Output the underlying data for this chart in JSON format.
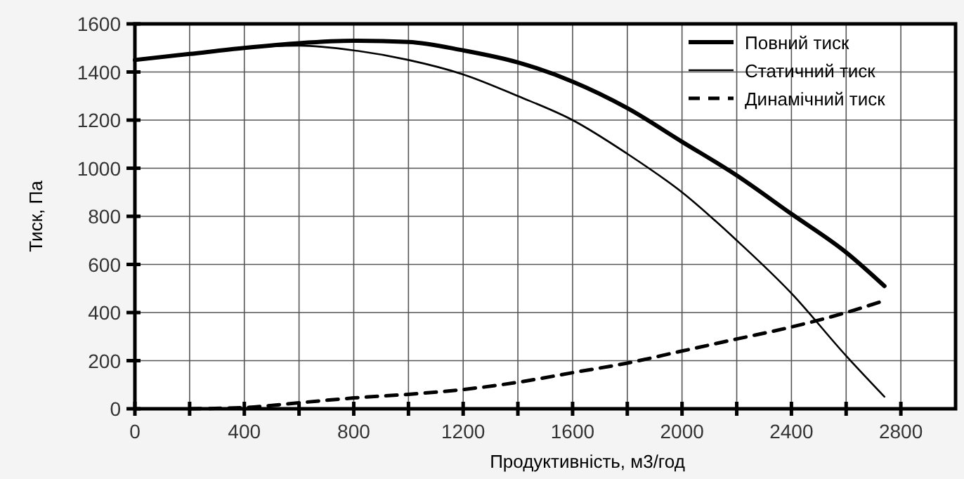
{
  "chart_data": {
    "type": "line",
    "xlabel": "Продуктивність, м3/год",
    "ylabel": "Тиск, Па",
    "xlim": [
      0,
      3000
    ],
    "ylim": [
      0,
      1600
    ],
    "xticks": [
      0,
      {
        "value": 200,
        "label": null
      },
      400,
      {
        "value": 600,
        "label": null
      },
      800,
      {
        "value": 1000,
        "label": null
      },
      1200,
      {
        "value": 1400,
        "label": null
      },
      1600,
      {
        "value": 1800,
        "label": null
      },
      2000,
      {
        "value": 2200,
        "label": null
      },
      2400,
      {
        "value": 2600,
        "label": null
      },
      2800
    ],
    "yticks": [
      0,
      200,
      400,
      600,
      800,
      1000,
      1200,
      1400,
      1600
    ],
    "grid": true,
    "legend": "top right",
    "series": [
      {
        "name": "Повний тиск",
        "color": "#000000",
        "line_style": "solid",
        "x": [
          0,
          200,
          400,
          600,
          800,
          1000,
          1200,
          1400,
          1600,
          1800,
          2000,
          2200,
          2400,
          2600,
          2740
        ],
        "values": [
          1450,
          1475,
          1500,
          1520,
          1530,
          1525,
          1490,
          1440,
          1360,
          1250,
          1110,
          970,
          810,
          650,
          510
        ]
      },
      {
        "name": "Статичний тиск",
        "color": "#000000",
        "line_style": "solid",
        "x": [
          0,
          200,
          400,
          600,
          800,
          1000,
          1200,
          1400,
          1600,
          1800,
          2000,
          2200,
          2400,
          2600,
          2740
        ],
        "values": [
          1450,
          1475,
          1500,
          1510,
          1490,
          1450,
          1390,
          1300,
          1200,
          1060,
          900,
          700,
          480,
          220,
          50
        ]
      },
      {
        "name": "Динамічний тиск",
        "color": "#000000",
        "line_style": "dashed",
        "x": [
          200,
          400,
          600,
          800,
          1000,
          1200,
          1400,
          1600,
          1800,
          2000,
          2200,
          2400,
          2600,
          2740
        ],
        "values": [
          0,
          5,
          25,
          45,
          60,
          80,
          110,
          150,
          190,
          240,
          290,
          340,
          400,
          450
        ]
      }
    ]
  }
}
